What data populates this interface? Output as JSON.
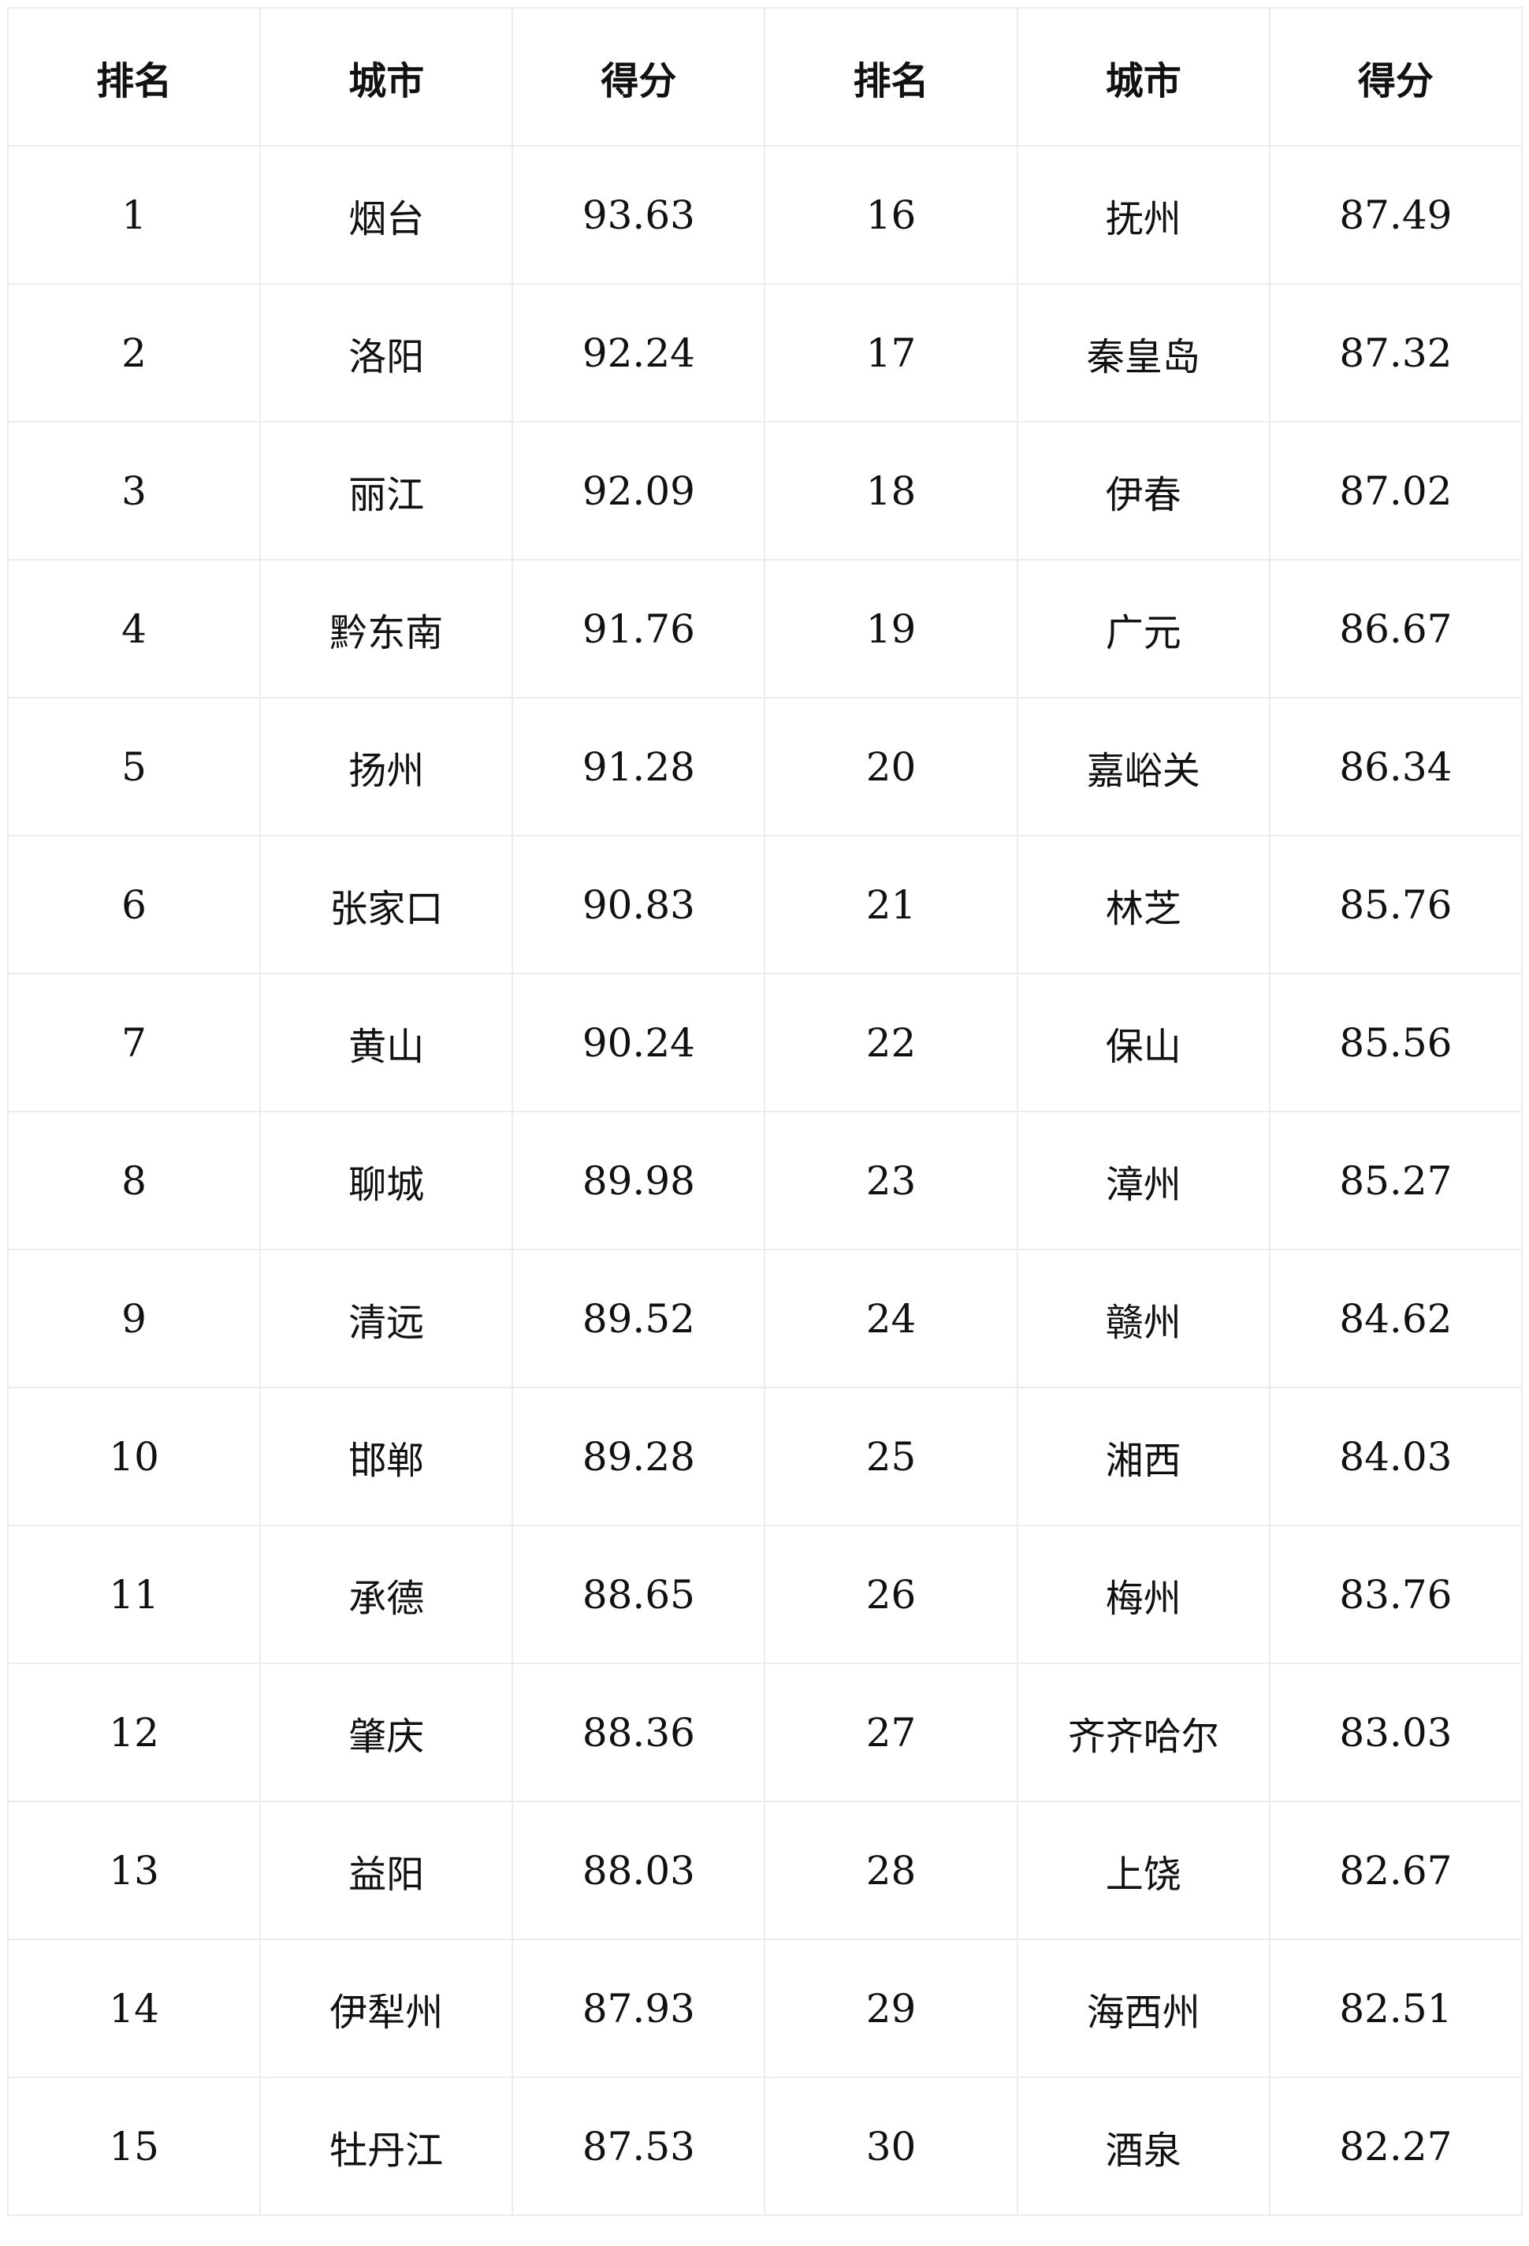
{
  "table": {
    "header": [
      "排名",
      "城市",
      "得分",
      "排名",
      "城市",
      "得分"
    ],
    "rows": [
      [
        1,
        "烟台",
        93.63,
        16,
        "抚州",
        87.49
      ],
      [
        2,
        "洛阳",
        92.24,
        17,
        "秦皇岛",
        87.32
      ],
      [
        3,
        "丽江",
        92.09,
        18,
        "伊春",
        87.02
      ],
      [
        4,
        "黔东南",
        91.76,
        19,
        "广元",
        86.67
      ],
      [
        5,
        "扬州",
        91.28,
        20,
        "嘉峪关",
        86.34
      ],
      [
        6,
        "张家口",
        90.83,
        21,
        "林芝",
        85.76
      ],
      [
        7,
        "黄山",
        90.24,
        22,
        "保山",
        85.56
      ],
      [
        8,
        "聊城",
        89.98,
        23,
        "漳州",
        85.27
      ],
      [
        9,
        "清远",
        89.52,
        24,
        "赣州",
        84.62
      ],
      [
        10,
        "邯郸",
        89.28,
        25,
        "湘西",
        84.03
      ],
      [
        11,
        "承德",
        88.65,
        26,
        "梅州",
        83.76
      ],
      [
        12,
        "肇庆",
        88.36,
        27,
        "齐齐哈尔",
        83.03
      ],
      [
        13,
        "益阳",
        88.03,
        28,
        "上饶",
        82.67
      ],
      [
        14,
        "伊犁州",
        87.93,
        29,
        "海西州",
        82.51
      ],
      [
        15,
        "牡丹江",
        87.53,
        30,
        "酒泉",
        82.27
      ]
    ]
  }
}
